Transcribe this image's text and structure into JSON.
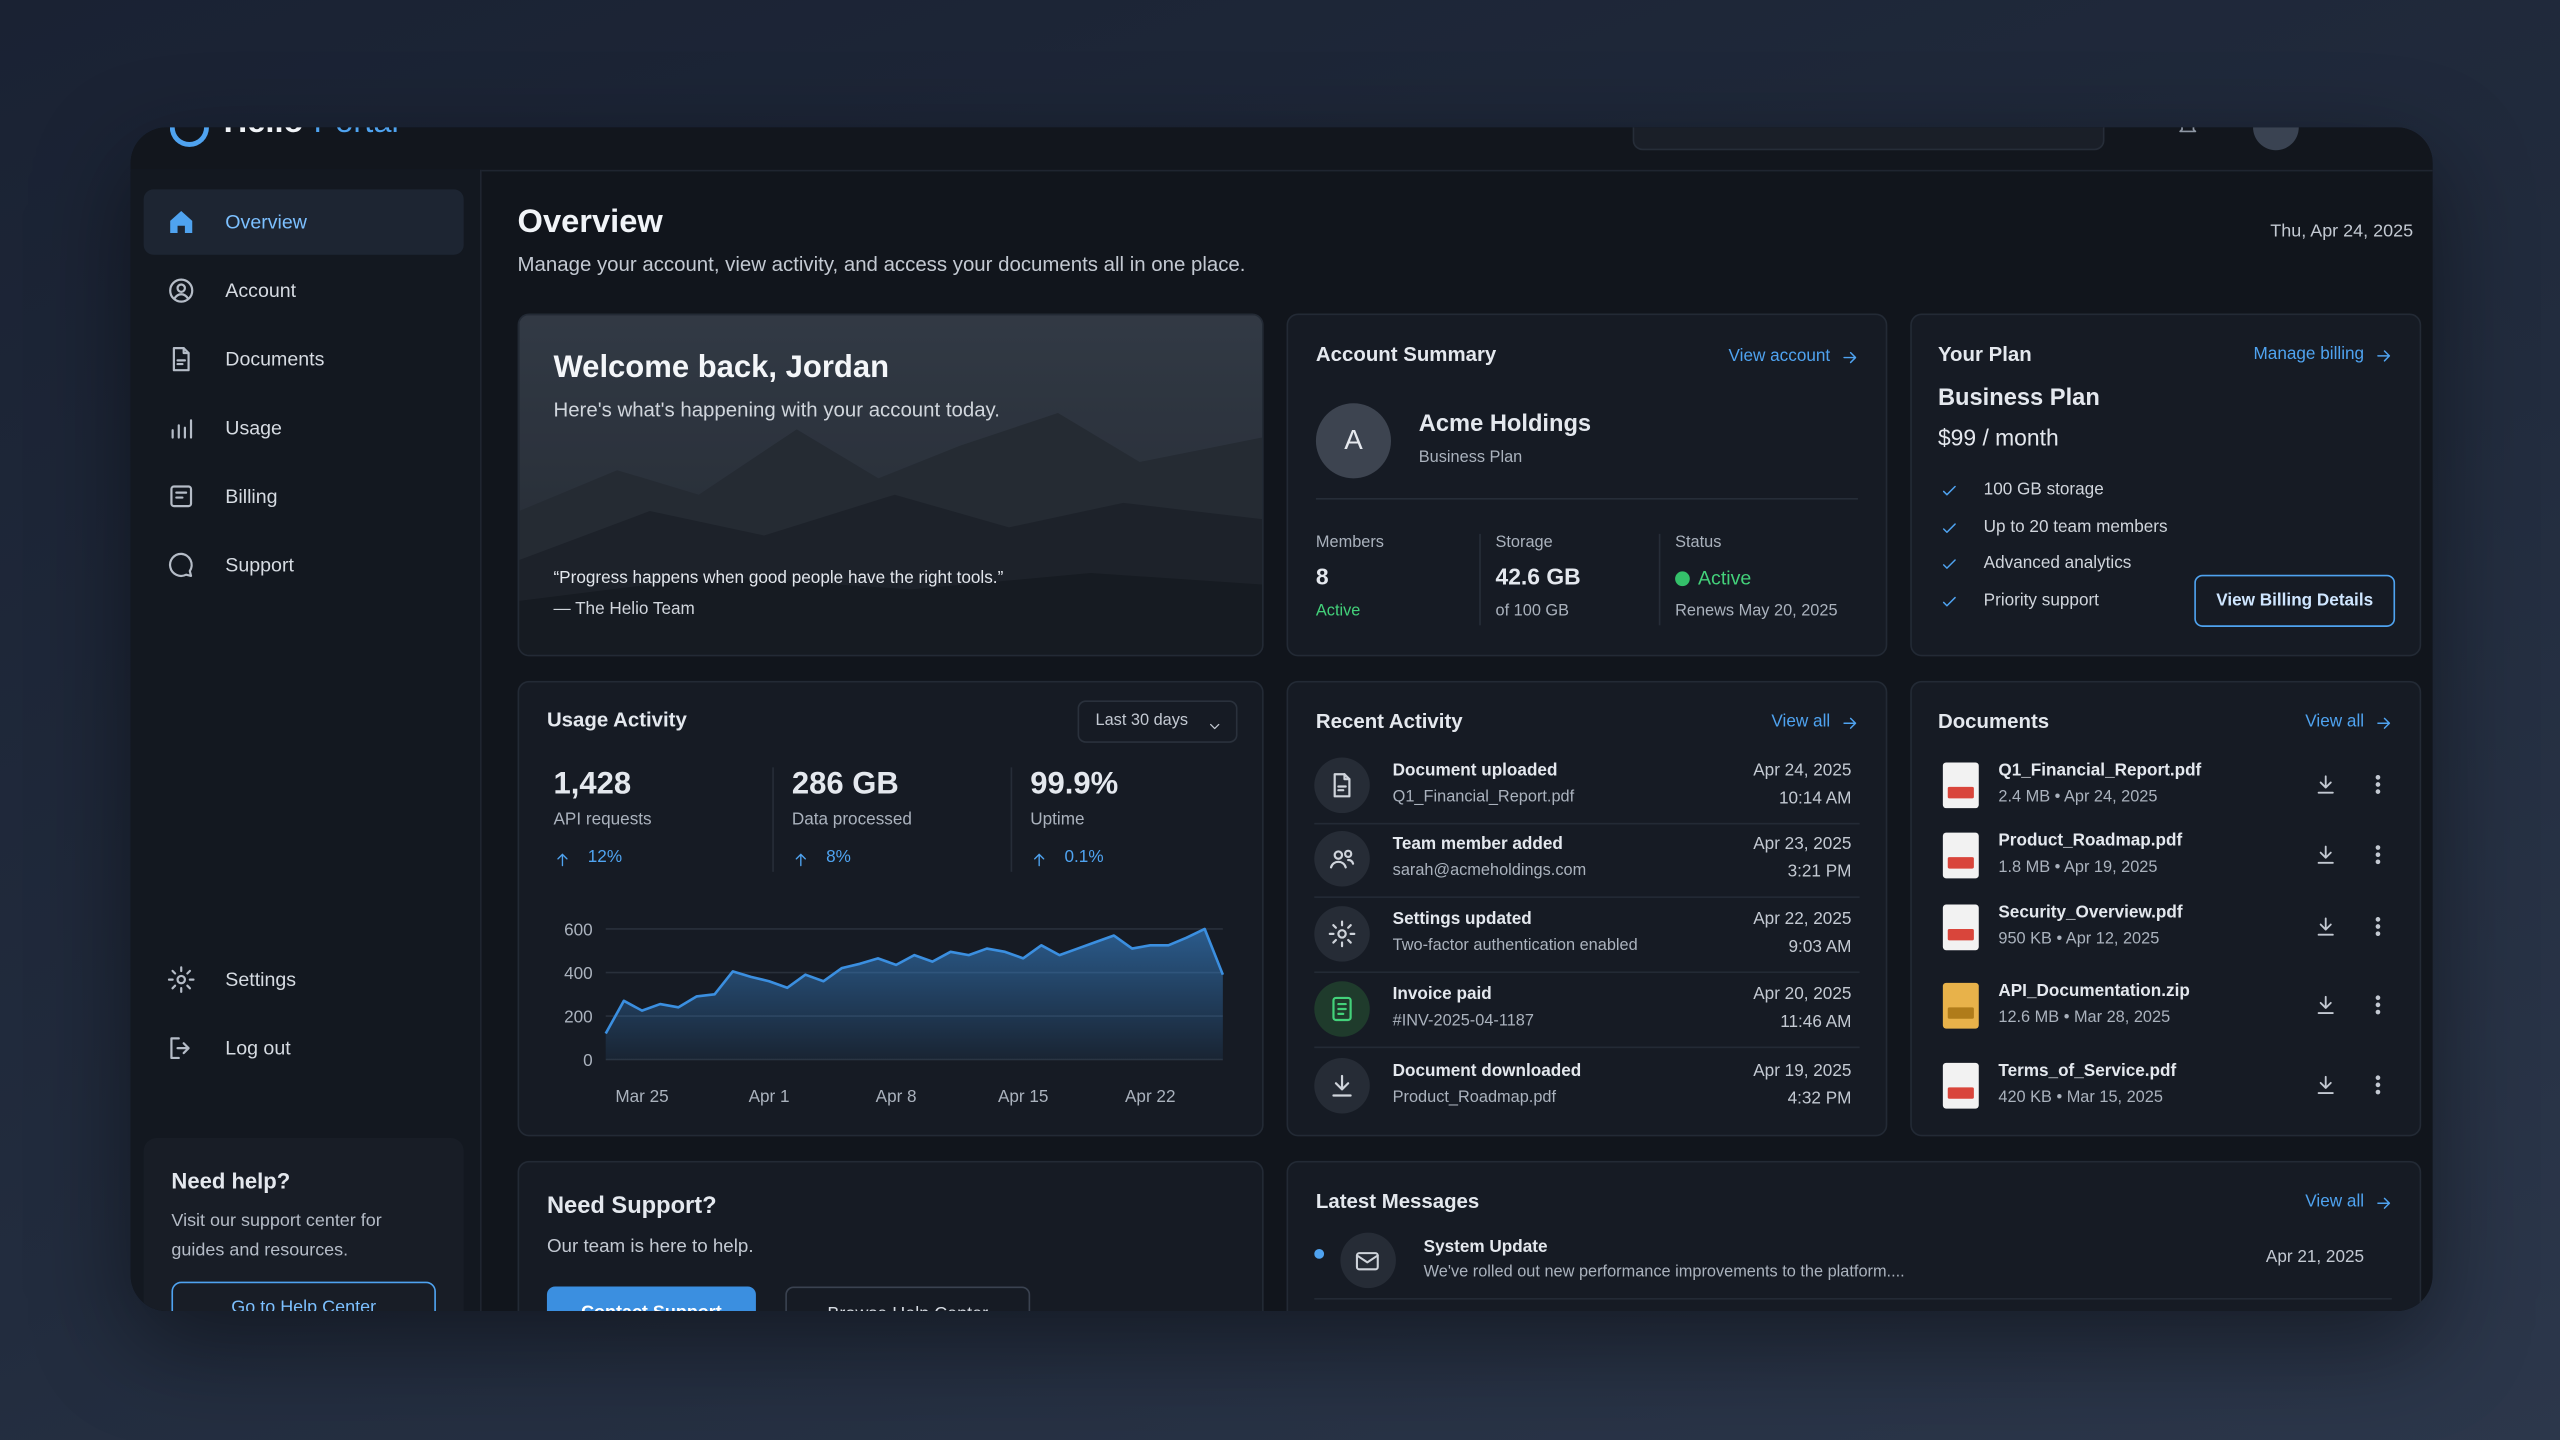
{
  "header": {
    "brand": "Helio",
    "product": "Portal"
  },
  "nav": [
    "Overview",
    "Account",
    "Documents",
    "Usage",
    "Billing",
    "Support"
  ],
  "nav_bottom": [
    "Settings",
    "Log out"
  ],
  "help": {
    "title": "Need help?",
    "text": "Visit our support center for guides and resources.",
    "button": "Go to Help Center"
  },
  "page": {
    "title": "Overview",
    "subtitle": "Manage your account, view activity, and access your documents all in one place.",
    "date": "Thu, Apr 24, 2025"
  },
  "welcome": {
    "title": "Welcome back, Jordan",
    "subtitle": "Here's what's happening with your account today.",
    "quote": "“Progress happens when good people have the right tools.”",
    "author": "— The Helio Team"
  },
  "account": {
    "title": "Account Summary",
    "link": "View account",
    "avatar": "A",
    "name": "Acme Holdings",
    "plan": "Business Plan",
    "stats": [
      {
        "label": "Members",
        "value": "8",
        "sub": "Active"
      },
      {
        "label": "Storage",
        "value": "42.6 GB",
        "sub": "of 100 GB"
      },
      {
        "label": "Status",
        "value": "Active",
        "sub": "Renews May 20, 2025"
      }
    ]
  },
  "plan": {
    "title": "Your Plan",
    "link": "Manage billing",
    "name": "Business Plan",
    "price": "$99 / month",
    "features": [
      "100 GB storage",
      "Up to 20 team members",
      "Advanced analytics",
      "Priority support"
    ],
    "button": "View Billing Details"
  },
  "usage": {
    "title": "Usage Activity",
    "range": "Last 30 days",
    "stats": [
      {
        "value": "1,428",
        "label": "API requests",
        "change": "12%"
      },
      {
        "value": "286 GB",
        "label": "Data processed",
        "change": "8%"
      },
      {
        "value": "99.9%",
        "label": "Uptime",
        "change": "0.1%"
      }
    ]
  },
  "chart_data": {
    "type": "line",
    "categories": [
      null,
      null,
      "Mar 25",
      null,
      null,
      null,
      null,
      null,
      null,
      "Apr 1",
      null,
      null,
      null,
      null,
      null,
      null,
      "Apr 8",
      null,
      null,
      null,
      null,
      null,
      null,
      "Apr 15",
      null,
      null,
      null,
      null,
      null,
      null,
      "Apr 22",
      null,
      null,
      null,
      null
    ],
    "values": [
      120,
      270,
      225,
      255,
      240,
      290,
      300,
      405,
      380,
      360,
      330,
      390,
      360,
      420,
      440,
      465,
      435,
      480,
      450,
      495,
      480,
      510,
      495,
      465,
      525,
      480,
      510,
      540,
      570,
      510,
      525,
      525,
      560,
      600,
      390
    ],
    "color": "#3b8fe0",
    "ylim": [
      0,
      600
    ],
    "yticks": [
      0,
      200,
      400,
      600
    ],
    "grid": true
  },
  "activity": {
    "title": "Recent Activity",
    "link": "View all",
    "items": [
      {
        "title": "Document uploaded",
        "detail": "Q1_Financial_Report.pdf",
        "date": "Apr 24, 2025",
        "time": "10:14 AM"
      },
      {
        "title": "Team member added",
        "detail": "sarah@acmeholdings.com",
        "date": "Apr 23, 2025",
        "time": "3:21 PM"
      },
      {
        "title": "Settings updated",
        "detail": "Two-factor authentication enabled",
        "date": "Apr 22, 2025",
        "time": "9:03 AM"
      },
      {
        "title": "Invoice paid",
        "detail": "#INV-2025-04-1187",
        "date": "Apr 20, 2025",
        "time": "11:46 AM"
      },
      {
        "title": "Document downloaded",
        "detail": "Product_Roadmap.pdf",
        "date": "Apr 19, 2025",
        "time": "4:32 PM"
      }
    ]
  },
  "documents": {
    "title": "Documents",
    "link": "View all",
    "items": [
      {
        "name": "Q1_Financial_Report.pdf",
        "meta": "2.4 MB • Apr 24, 2025"
      },
      {
        "name": "Product_Roadmap.pdf",
        "meta": "1.8 MB • Apr 19, 2025"
      },
      {
        "name": "Security_Overview.pdf",
        "meta": "950 KB • Apr 12, 2025"
      },
      {
        "name": "API_Documentation.zip",
        "meta": "12.6 MB • Mar 28, 2025"
      },
      {
        "name": "Terms_of_Service.pdf",
        "meta": "420 KB • Mar 15, 2025"
      }
    ]
  },
  "support": {
    "title": "Need Support?",
    "text": "Our team is here to help.",
    "primary": "Contact Support",
    "secondary": "Browse Help Center"
  },
  "messages": {
    "title": "Latest Messages",
    "link": "View all",
    "items": [
      {
        "title": "System Update",
        "text": "We've rolled out new performance improvements to the platform....",
        "date": "Apr 21, 2025"
      }
    ]
  }
}
